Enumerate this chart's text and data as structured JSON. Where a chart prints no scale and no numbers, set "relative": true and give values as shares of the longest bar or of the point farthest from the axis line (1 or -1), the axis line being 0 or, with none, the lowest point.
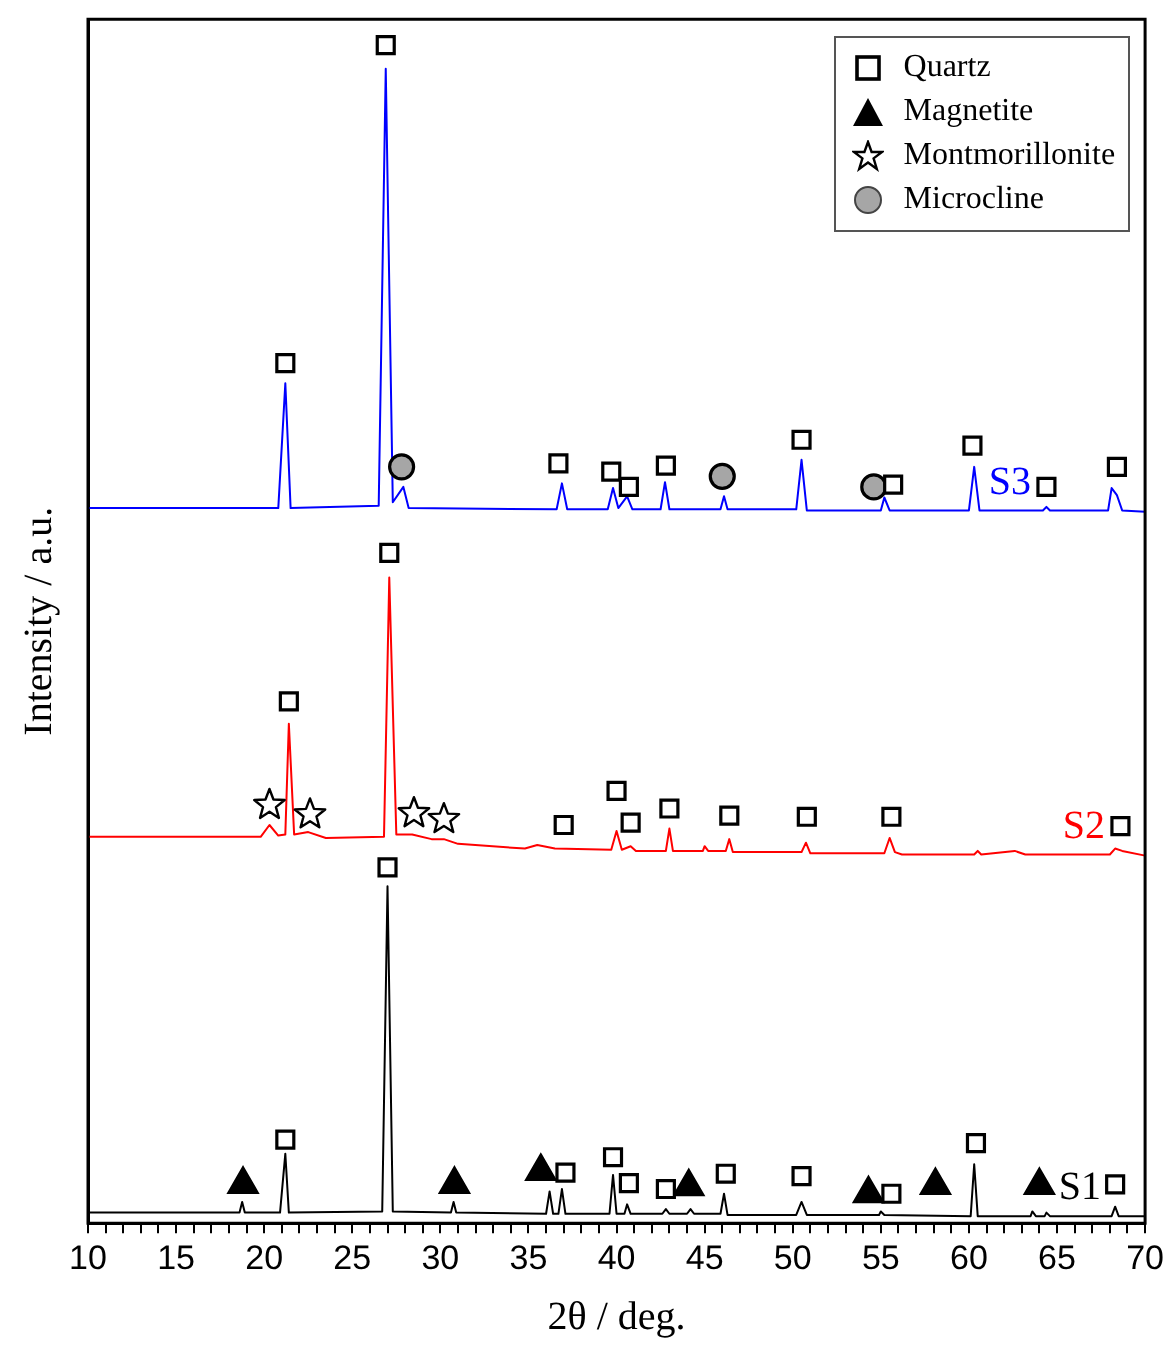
{
  "chart_data": {
    "type": "line",
    "xlabel": "2θ / deg.",
    "ylabel": "Intensity / a.u.",
    "relative": true,
    "xlim": [
      10,
      70
    ],
    "xticks": [
      10,
      {
        "value": 11,
        "label": null
      },
      {
        "value": 12,
        "label": null
      },
      {
        "value": 13,
        "label": null
      },
      {
        "value": 14,
        "label": null
      },
      15,
      {
        "value": 16,
        "label": null
      },
      {
        "value": 17,
        "label": null
      },
      {
        "value": 18,
        "label": null
      },
      {
        "value": 19,
        "label": null
      },
      20,
      {
        "value": 21,
        "label": null
      },
      {
        "value": 22,
        "label": null
      },
      {
        "value": 23,
        "label": null
      },
      {
        "value": 24,
        "label": null
      },
      25,
      {
        "value": 26,
        "label": null
      },
      {
        "value": 27,
        "label": null
      },
      {
        "value": 28,
        "label": null
      },
      {
        "value": 29,
        "label": null
      },
      30,
      {
        "value": 31,
        "label": null
      },
      {
        "value": 32,
        "label": null
      },
      {
        "value": 33,
        "label": null
      },
      {
        "value": 34,
        "label": null
      },
      35,
      {
        "value": 36,
        "label": null
      },
      {
        "value": 37,
        "label": null
      },
      {
        "value": 38,
        "label": null
      },
      {
        "value": 39,
        "label": null
      },
      40,
      {
        "value": 41,
        "label": null
      },
      {
        "value": 42,
        "label": null
      },
      {
        "value": 43,
        "label": null
      },
      {
        "value": 44,
        "label": null
      },
      45,
      {
        "value": 46,
        "label": null
      },
      {
        "value": 47,
        "label": null
      },
      {
        "value": 48,
        "label": null
      },
      {
        "value": 49,
        "label": null
      },
      50,
      {
        "value": 51,
        "label": null
      },
      {
        "value": 52,
        "label": null
      },
      {
        "value": 53,
        "label": null
      },
      {
        "value": 54,
        "label": null
      },
      55,
      {
        "value": 56,
        "label": null
      },
      {
        "value": 57,
        "label": null
      },
      {
        "value": 58,
        "label": null
      },
      {
        "value": 59,
        "label": null
      },
      60,
      {
        "value": 61,
        "label": null
      },
      {
        "value": 62,
        "label": null
      },
      {
        "value": 63,
        "label": null
      },
      {
        "value": 64,
        "label": null
      },
      65,
      {
        "value": 66,
        "label": null
      },
      {
        "value": 67,
        "label": null
      },
      {
        "value": 68,
        "label": null
      },
      {
        "value": 69,
        "label": null
      },
      70
    ],
    "grid": false,
    "legend": "top right",
    "marker": "none",
    "series": [
      {
        "name": "S3",
        "color": "#0000ff",
        "x": [
          10,
          20.8,
          21.2,
          21.5,
          26.5,
          26.9,
          27.3,
          27.9,
          28.2,
          36.6,
          36.9,
          37.2,
          39.5,
          39.8,
          40.1,
          40.6,
          40.9,
          42.5,
          42.75,
          43.0,
          45.9,
          46.1,
          46.3,
          50.2,
          50.5,
          50.8,
          55.0,
          55.2,
          55.5,
          60.0,
          60.3,
          60.6,
          64.2,
          64.4,
          64.6,
          67.9,
          68.1,
          68.4,
          68.7,
          70
        ],
        "values": [
          0.607,
          0.607,
          0.713,
          0.607,
          0.609,
          0.98,
          0.612,
          0.625,
          0.607,
          0.606,
          0.628,
          0.606,
          0.606,
          0.624,
          0.607,
          0.617,
          0.606,
          0.606,
          0.629,
          0.606,
          0.606,
          0.617,
          0.606,
          0.606,
          0.648,
          0.605,
          0.605,
          0.616,
          0.605,
          0.605,
          0.642,
          0.605,
          0.605,
          0.608,
          0.605,
          0.605,
          0.624,
          0.618,
          0.605,
          0.604
        ]
      },
      {
        "name": "S2",
        "color": "#ff0000",
        "x": [
          10,
          19.8,
          20.3,
          20.8,
          21.2,
          21.4,
          21.7,
          22.5,
          23.5,
          26.8,
          27.1,
          27.5,
          28.4,
          29.5,
          30.2,
          31,
          34.8,
          35.5,
          36.5,
          39.7,
          40.0,
          40.3,
          40.8,
          41.1,
          42.8,
          43.0,
          43.2,
          44.9,
          45.0,
          45.2,
          46.2,
          46.4,
          46.6,
          50.5,
          50.75,
          51,
          55.2,
          55.5,
          55.8,
          56.2,
          60.3,
          60.5,
          60.7,
          62.6,
          63.2,
          68.0,
          68.3,
          68.7,
          70
        ],
        "values": [
          0.328,
          0.328,
          0.338,
          0.329,
          0.33,
          0.424,
          0.33,
          0.332,
          0.327,
          0.328,
          0.548,
          0.33,
          0.33,
          0.326,
          0.326,
          0.322,
          0.318,
          0.321,
          0.318,
          0.317,
          0.333,
          0.317,
          0.32,
          0.316,
          0.316,
          0.335,
          0.316,
          0.316,
          0.32,
          0.316,
          0.316,
          0.326,
          0.315,
          0.315,
          0.323,
          0.314,
          0.314,
          0.327,
          0.315,
          0.313,
          0.313,
          0.316,
          0.313,
          0.316,
          0.313,
          0.313,
          0.318,
          0.316,
          0.312
        ]
      },
      {
        "name": "S1",
        "color": "#000000",
        "x": [
          10,
          18.6,
          18.75,
          18.9,
          20.9,
          21.2,
          21.4,
          26.7,
          27.0,
          27.3,
          30.6,
          30.75,
          30.9,
          36.0,
          36.2,
          36.4,
          36.7,
          36.9,
          37.1,
          39.6,
          39.8,
          40.0,
          40.45,
          40.6,
          40.8,
          42.6,
          42.8,
          43.0,
          44.0,
          44.2,
          44.4,
          45.9,
          46.1,
          46.3,
          50.2,
          50.5,
          50.8,
          54.9,
          55.0,
          55.2,
          60.1,
          60.3,
          60.5,
          63.5,
          63.6,
          63.8,
          64.3,
          64.4,
          64.6,
          68.1,
          68.3,
          68.5,
          70
        ],
        "values": [
          0.009,
          0.009,
          0.018,
          0.009,
          0.009,
          0.059,
          0.009,
          0.01,
          0.286,
          0.01,
          0.009,
          0.018,
          0.009,
          0.008,
          0.027,
          0.008,
          0.008,
          0.029,
          0.008,
          0.008,
          0.041,
          0.008,
          0.008,
          0.016,
          0.008,
          0.008,
          0.012,
          0.008,
          0.008,
          0.012,
          0.008,
          0.008,
          0.025,
          0.007,
          0.007,
          0.018,
          0.007,
          0.007,
          0.01,
          0.007,
          0.006,
          0.05,
          0.006,
          0.006,
          0.01,
          0.006,
          0.006,
          0.009,
          0.006,
          0.006,
          0.014,
          0.006,
          0.006
        ]
      },
      {
        "name": "Quartz",
        "type": "scatter",
        "marker": "square",
        "color": "#000000",
        "x": [
          21.2,
          26.9,
          36.7,
          39.7,
          40.7,
          42.8,
          50.5,
          55.7,
          60.2,
          64.4,
          68.4,
          21.4,
          27.1,
          37.0,
          40.0,
          40.8,
          43.0,
          46.4,
          50.8,
          55.6,
          68.6,
          21.2,
          27.0,
          37.1,
          39.8,
          40.7,
          42.8,
          46.2,
          50.5,
          55.6,
          60.4,
          68.3
        ],
        "values": [
          0.73,
          1.0,
          0.645,
          0.638,
          0.625,
          0.643,
          0.665,
          0.627,
          0.66,
          0.625,
          0.642,
          0.443,
          0.569,
          0.338,
          0.367,
          0.34,
          0.352,
          0.346,
          0.345,
          0.345,
          0.337,
          0.071,
          0.302,
          0.043,
          0.056,
          0.034,
          0.029,
          0.042,
          0.04,
          0.025,
          0.068,
          0.033
        ]
      },
      {
        "name": "Magnetite",
        "type": "scatter",
        "marker": "triangle",
        "color": "#000000",
        "x": [
          18.8,
          30.8,
          35.7,
          44.1,
          54.3,
          58.1,
          64.0
        ],
        "values": [
          0.033,
          0.033,
          0.044,
          0.031,
          0.025,
          0.032,
          0.032
        ]
      },
      {
        "name": "Montmorillonite",
        "type": "scatter",
        "marker": "star",
        "color": "#000000",
        "x": [
          20.3,
          22.6,
          28.5,
          30.2
        ],
        "values": [
          0.355,
          0.347,
          0.348,
          0.343
        ]
      },
      {
        "name": "Microcline",
        "type": "scatter",
        "marker": "circle",
        "color": "#a6a6a6",
        "x": [
          27.8,
          46.0,
          54.6
        ],
        "values": [
          0.642,
          0.634,
          0.625
        ]
      }
    ]
  }
}
